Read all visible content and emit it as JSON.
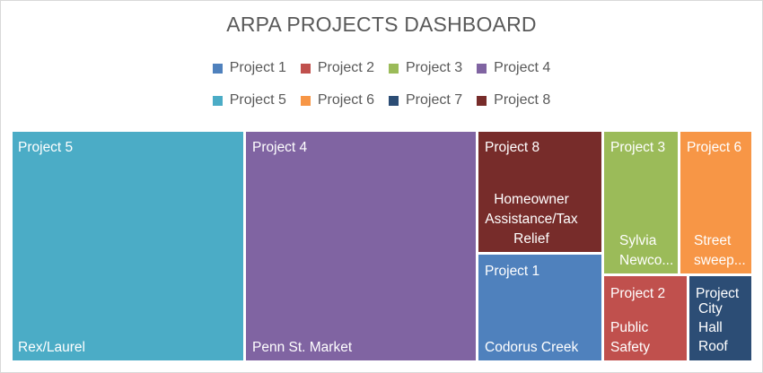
{
  "title": "ARPA PROJECTS DASHBOARD",
  "legend": [
    {
      "label": "Project 1",
      "color": "#4f81bd"
    },
    {
      "label": "Project 2",
      "color": "#c0504d"
    },
    {
      "label": "Project 3",
      "color": "#9bbb59"
    },
    {
      "label": "Project 4",
      "color": "#8064a2"
    },
    {
      "label": "Project 5",
      "color": "#4bacc6"
    },
    {
      "label": "Project 6",
      "color": "#f79646"
    },
    {
      "label": "Project 7",
      "color": "#2c4d75"
    },
    {
      "label": "Project 8",
      "color": "#772c2a"
    }
  ],
  "chart_data": {
    "type": "treemap",
    "title": "ARPA PROJECTS DASHBOARD",
    "legend_position": "top",
    "tiles": [
      {
        "series": "Project 5",
        "name_label": "Project 5",
        "item": "Rex/Laurel",
        "color": "#4bacc6"
      },
      {
        "series": "Project 4",
        "name_label": "Project 4",
        "item": "Penn St. Market",
        "color": "#8064a2"
      },
      {
        "series": "Project 8",
        "name_label": "Project 8",
        "item": "Homeowner Assistance/Tax Relief",
        "item_lines": [
          "Homeowner",
          "Assistance/Tax",
          "Relief"
        ],
        "color": "#772c2a"
      },
      {
        "series": "Project 1",
        "name_label": "Project 1",
        "item": "Codorus Creek",
        "color": "#4f81bd"
      },
      {
        "series": "Project 3",
        "name_label": "Project 3",
        "item": "Sylvia Newco...",
        "item_lines": [
          "Sylvia",
          "Newco..."
        ],
        "color": "#9bbb59"
      },
      {
        "series": "Project 6",
        "name_label": "Project 6",
        "item": "Street sweep...",
        "item_lines": [
          "Street",
          "sweep..."
        ],
        "color": "#f79646"
      },
      {
        "series": "Project 2",
        "name_label": "Project 2",
        "item": "Public Safety",
        "item_lines": [
          "Public",
          "Safety"
        ],
        "color": "#c0504d"
      },
      {
        "series": "Project 7",
        "name_label": "Project",
        "item": "City Hall Roof",
        "item_lines": [
          "City",
          "Hall",
          "Roof"
        ],
        "color": "#2c4d75"
      }
    ]
  }
}
